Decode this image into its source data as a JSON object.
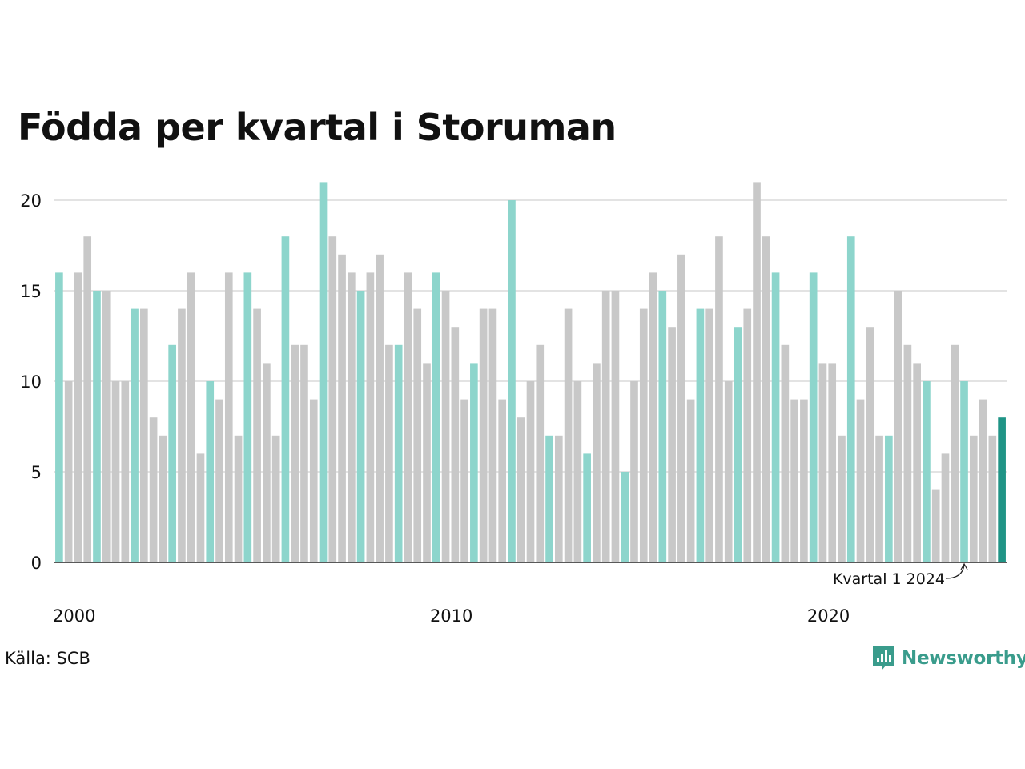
{
  "chart_data": {
    "type": "bar",
    "title": "Födda per kvartal i Storuman",
    "xlabel": "",
    "ylabel": "",
    "ylim": [
      0,
      21
    ],
    "y_ticks": [
      0,
      5,
      10,
      15,
      20
    ],
    "x_tick_labels": [
      {
        "label": "2000",
        "index": 0
      },
      {
        "label": "2010",
        "index": 40
      },
      {
        "label": "2020",
        "index": 80
      }
    ],
    "start_year": 2000,
    "grid": true,
    "highlight_rule": "Q1 bars highlighted, last bar emphasized",
    "annotation": {
      "text": "Kvartal 1 2024",
      "target_index": 96
    },
    "values": [
      16,
      10,
      16,
      18,
      15,
      15,
      10,
      10,
      14,
      14,
      8,
      7,
      12,
      14,
      16,
      6,
      10,
      9,
      16,
      7,
      16,
      14,
      11,
      7,
      18,
      12,
      12,
      9,
      21,
      18,
      17,
      16,
      15,
      16,
      17,
      12,
      12,
      16,
      14,
      11,
      16,
      15,
      13,
      9,
      11,
      14,
      14,
      9,
      20,
      8,
      10,
      12,
      7,
      7,
      14,
      10,
      6,
      11,
      15,
      15,
      5,
      10,
      14,
      16,
      15,
      13,
      17,
      9,
      14,
      14,
      18,
      10,
      13,
      14,
      21,
      18,
      16,
      12,
      9,
      9,
      16,
      11,
      11,
      7,
      18,
      9,
      13,
      7,
      7,
      15,
      12,
      11,
      10,
      4,
      6,
      12,
      10,
      7,
      9,
      7,
      8
    ],
    "colors": {
      "q1": "#8dd5cc",
      "other": "#c8c8c8",
      "latest": "#1f9486",
      "grid": "#e3e3e3",
      "axis": "#222222"
    }
  },
  "source": "Källa: SCB",
  "brand": {
    "name": "Newsworthy",
    "icon": "newsworthy-logo-icon"
  }
}
